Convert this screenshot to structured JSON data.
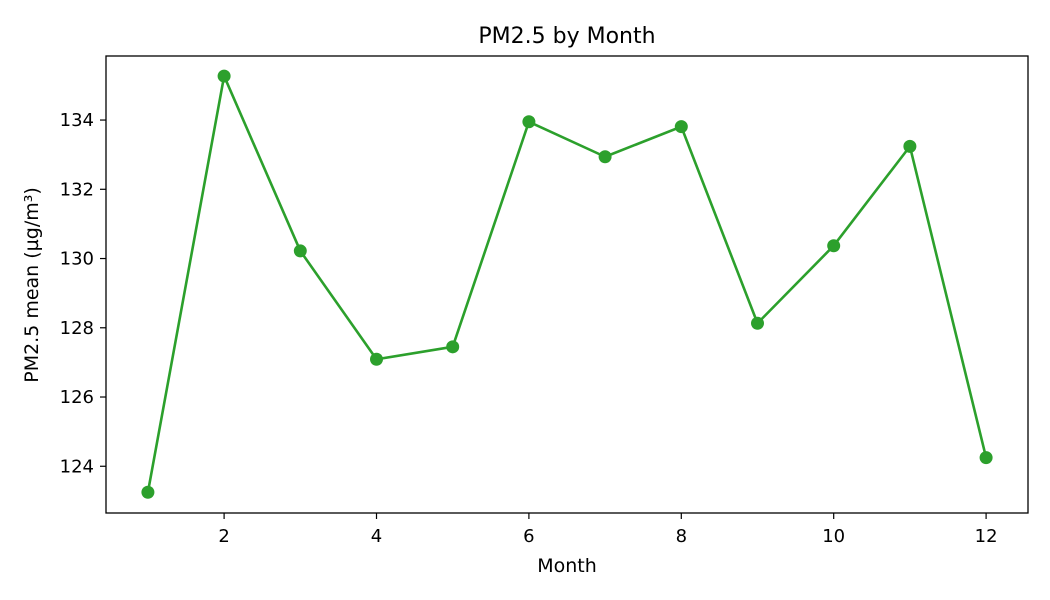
{
  "chart_data": {
    "type": "line",
    "title": "PM2.5 by Month",
    "xlabel": "Month",
    "ylabel": "PM2.5 mean (µg/m³)",
    "xlim": [
      0.45,
      12.55
    ],
    "ylim": [
      122.65,
      135.85
    ],
    "xticks": [
      2,
      4,
      6,
      8,
      10,
      12
    ],
    "yticks": [
      124,
      126,
      128,
      130,
      132,
      134
    ],
    "grid": false,
    "legend": "none",
    "series": [
      {
        "color": "#2ca02c",
        "marker": "circle",
        "x": [
          1,
          2,
          3,
          4,
          5,
          6,
          7,
          8,
          9,
          10,
          11,
          12
        ],
        "y": [
          123.25,
          135.27,
          130.22,
          127.09,
          127.45,
          133.95,
          132.94,
          133.81,
          128.13,
          130.37,
          133.24,
          124.25
        ]
      }
    ]
  }
}
